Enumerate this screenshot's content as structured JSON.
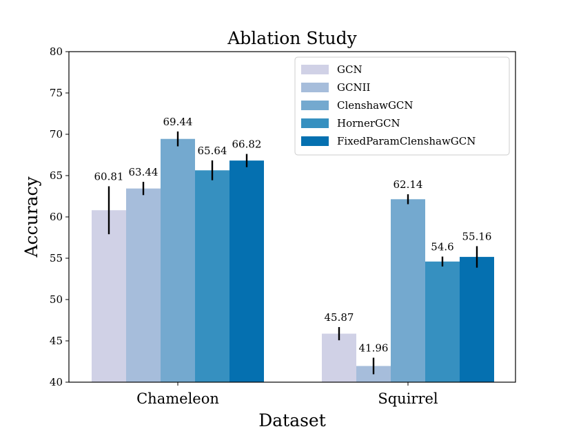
{
  "chart_data": {
    "type": "bar",
    "title": "Ablation Study",
    "xlabel": "Dataset",
    "ylabel": "Accuracy",
    "categories": [
      "Chameleon",
      "Squirrel"
    ],
    "ylim": [
      40,
      80
    ],
    "yticks": [
      40,
      45,
      50,
      55,
      60,
      65,
      70,
      75,
      80
    ],
    "grid": false,
    "legend_position": "top-right",
    "series": [
      {
        "name": "GCN",
        "color": "#d0d1e6",
        "values": [
          60.81,
          45.87
        ],
        "errors": [
          2.9,
          0.8
        ],
        "labels": [
          "60.81",
          "45.87"
        ]
      },
      {
        "name": "GCNII",
        "color": "#a6bddb",
        "values": [
          63.44,
          41.96
        ],
        "errors": [
          0.8,
          1.0
        ],
        "labels": [
          "63.44",
          "41.96"
        ]
      },
      {
        "name": "ClenshawGCN",
        "color": "#74a9cf",
        "values": [
          69.44,
          62.14
        ],
        "errors": [
          0.9,
          0.6
        ],
        "labels": [
          "69.44",
          "62.14"
        ]
      },
      {
        "name": "HornerGCN",
        "color": "#3690c0",
        "values": [
          65.64,
          54.6
        ],
        "errors": [
          1.2,
          0.6
        ],
        "labels": [
          "65.64",
          "54.6"
        ]
      },
      {
        "name": "FixedParamClenshawGCN",
        "color": "#0570b0",
        "values": [
          66.82,
          55.16
        ],
        "errors": [
          0.8,
          1.3
        ],
        "labels": [
          "66.82",
          "55.16"
        ]
      }
    ]
  }
}
